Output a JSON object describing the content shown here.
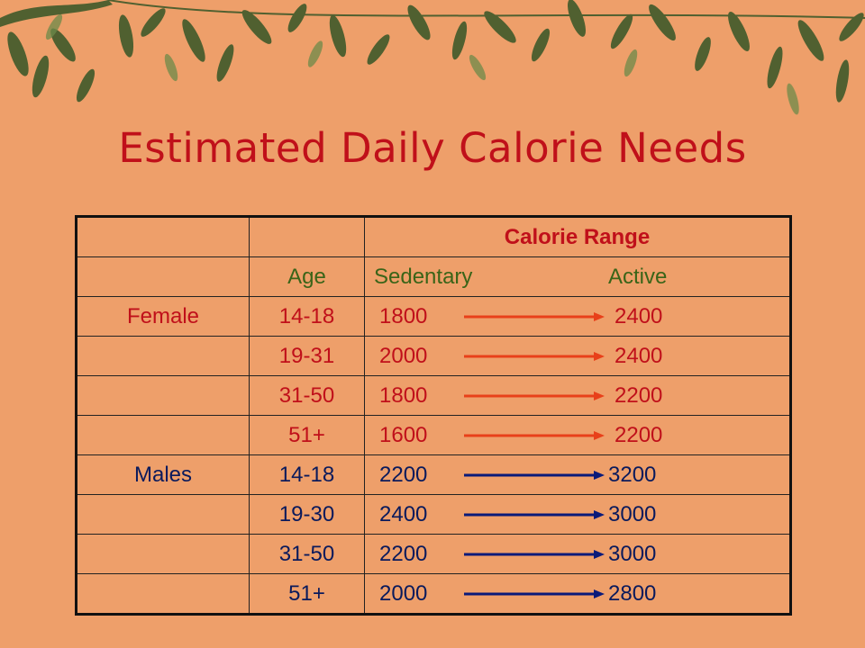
{
  "title": "Estimated Daily Calorie Needs",
  "colors": {
    "background": "#ee9f6a",
    "title": "#c0101a",
    "female": "#c0101a",
    "male": "#0a1a5c",
    "arrow_female": "#e8401a",
    "arrow_male": "#0a1a7a",
    "header_green": "#3a6418"
  },
  "table": {
    "range_header": "Calorie Range",
    "col_age": "Age",
    "col_sedentary": "Sedentary",
    "col_active": "Active",
    "female": {
      "label": "Female",
      "rows": [
        {
          "age": "14-18",
          "sedentary": "1800",
          "active": "2400"
        },
        {
          "age": "19-31",
          "sedentary": "2000",
          "active": "2400"
        },
        {
          "age": "31-50",
          "sedentary": "1800",
          "active": "2200"
        },
        {
          "age": "51+",
          "sedentary": "1600",
          "active": "2200"
        }
      ]
    },
    "male": {
      "label": "Males",
      "rows": [
        {
          "age": "14-18",
          "sedentary": "2200",
          "active": "3200"
        },
        {
          "age": "19-30",
          "sedentary": "2400",
          "active": "3000"
        },
        {
          "age": "31-50",
          "sedentary": "2200",
          "active": "3000"
        },
        {
          "age": "51+",
          "sedentary": "2000",
          "active": "2800"
        }
      ]
    }
  }
}
